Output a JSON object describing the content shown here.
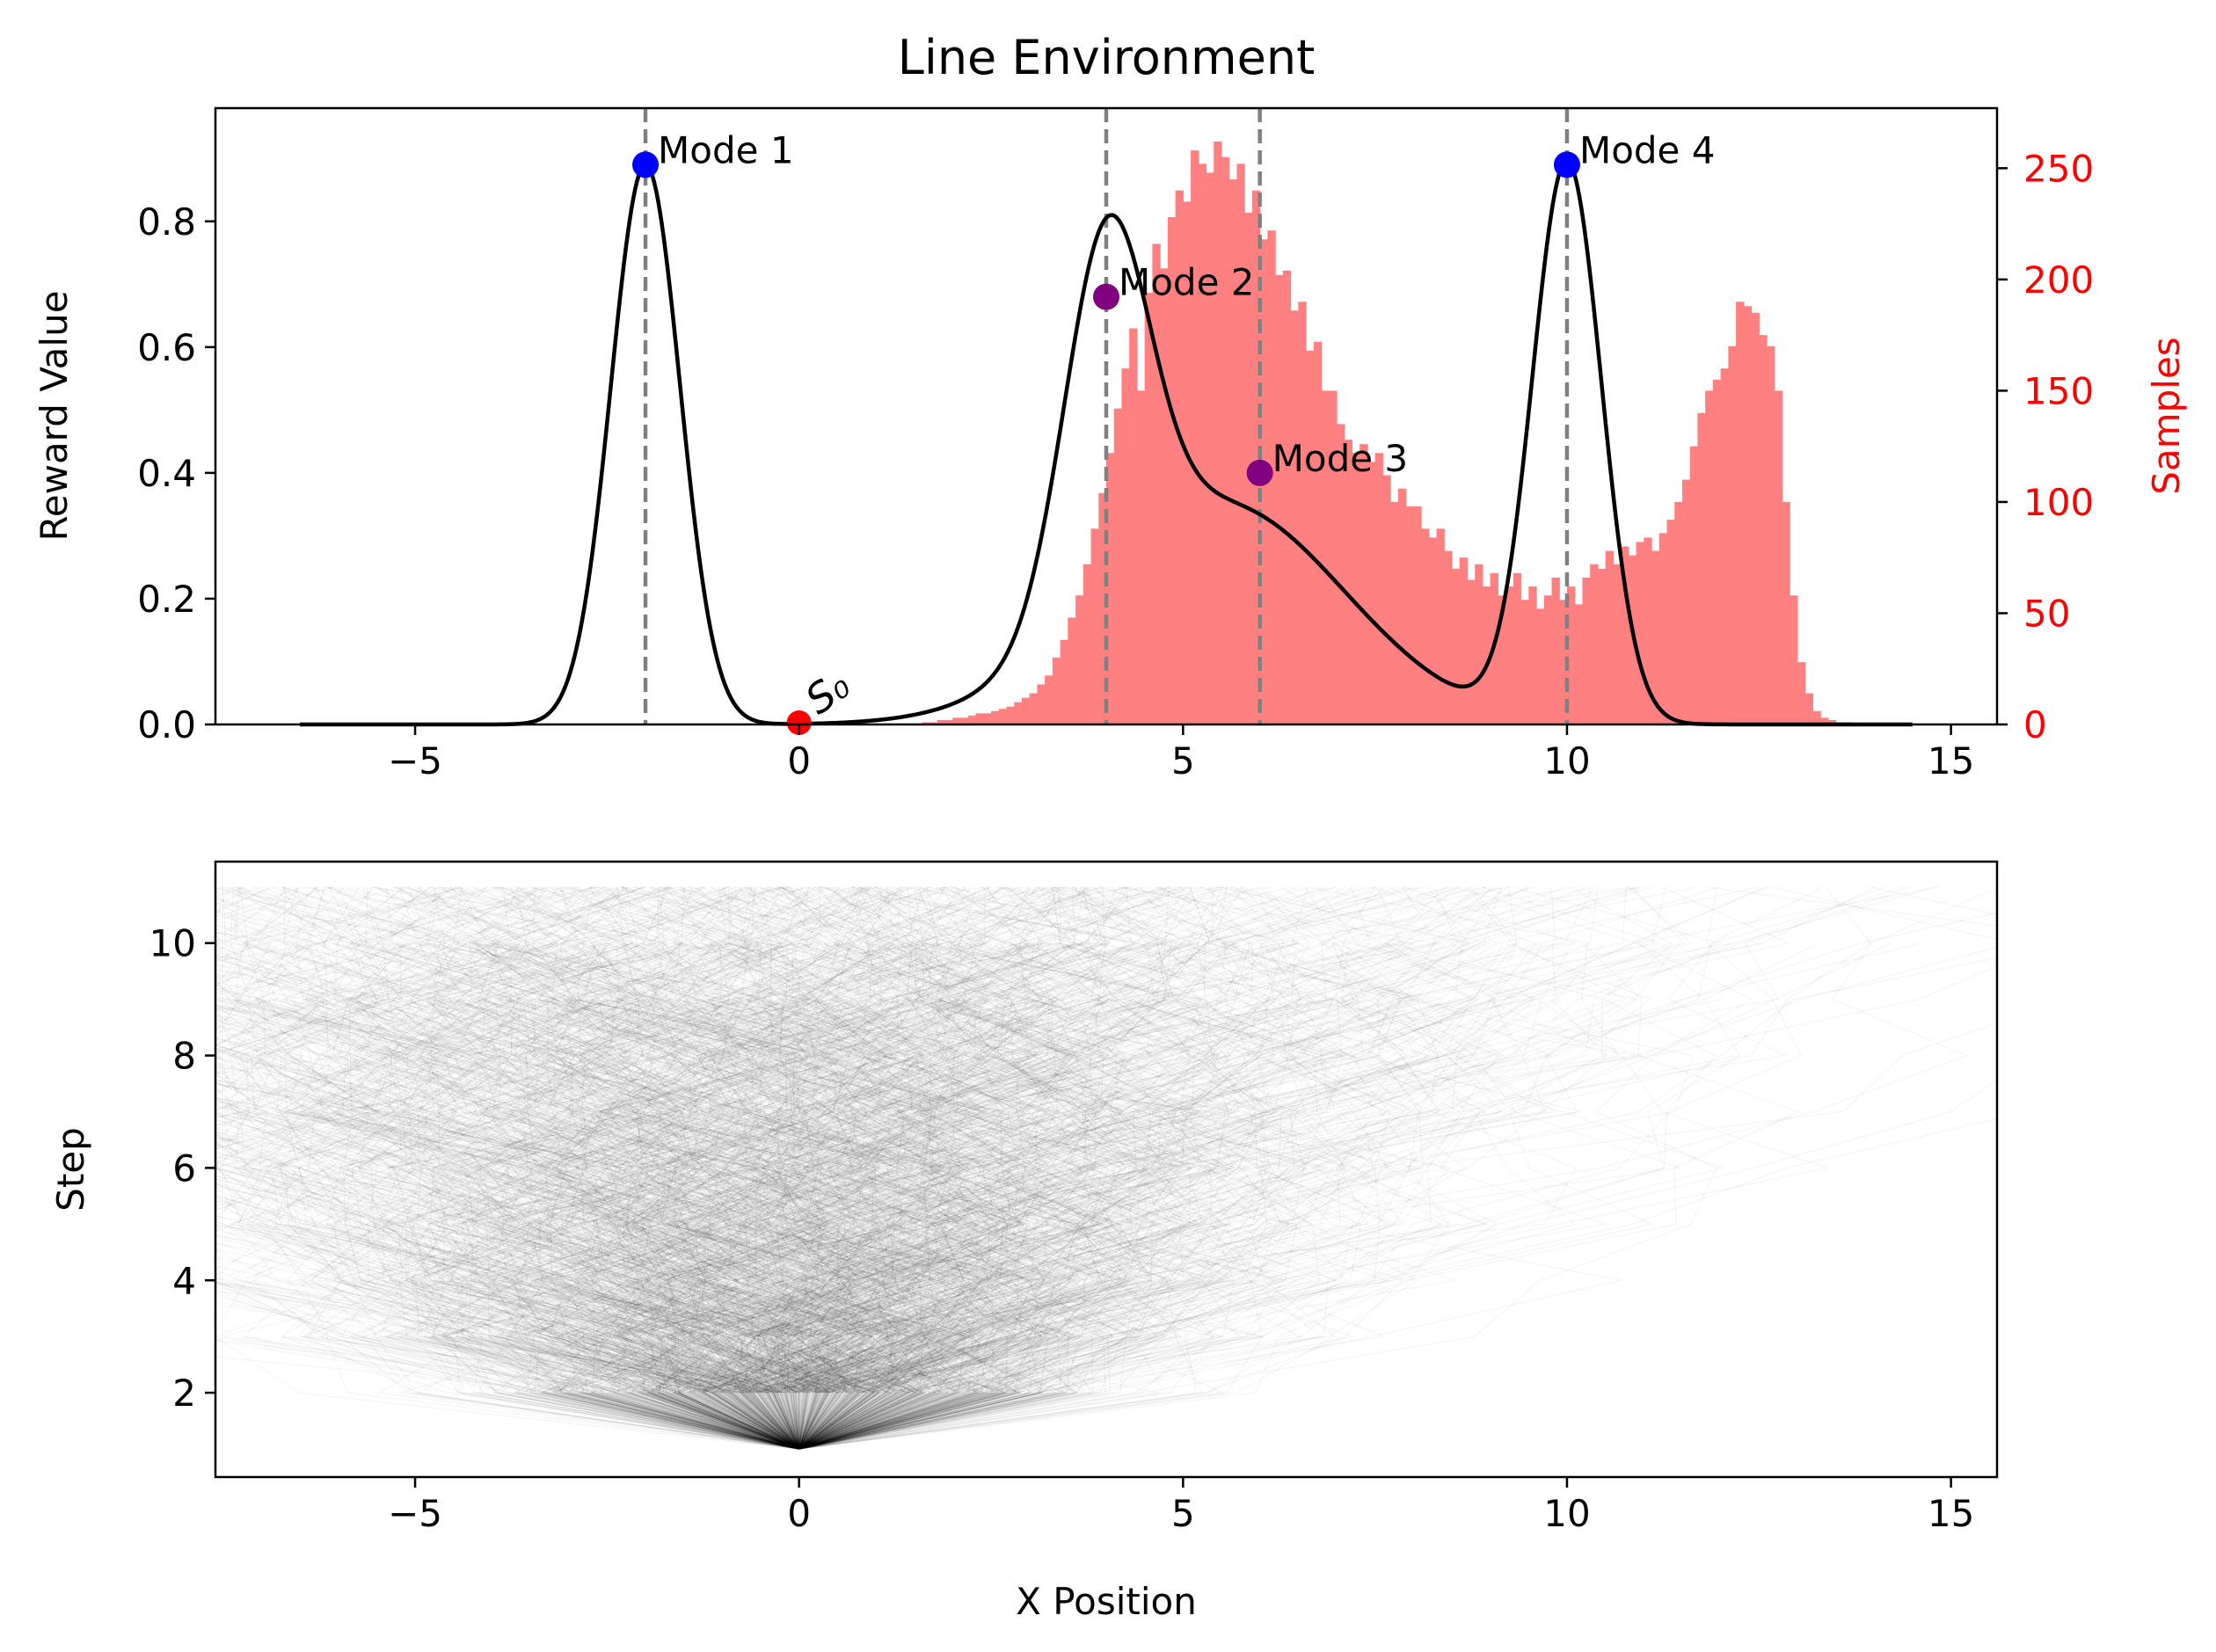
{
  "chart_data": [
    {
      "type": "line",
      "title": "Line Environment",
      "ylabel": "Reward Value",
      "y2label": "Samples",
      "xlim": [
        -7.6,
        15.6
      ],
      "ylim": [
        0,
        0.98
      ],
      "y2lim": [
        0,
        277
      ],
      "xticks": [
        -5,
        0,
        5,
        10,
        15
      ],
      "xtick_labels": [
        "−5",
        "0",
        "5",
        "10",
        "15"
      ],
      "yticks": [
        0.0,
        0.2,
        0.4,
        0.6,
        0.8
      ],
      "ytick_labels": [
        "0.0",
        "0.2",
        "0.4",
        "0.6",
        "0.8"
      ],
      "y2ticks": [
        0,
        50,
        100,
        150,
        200,
        250
      ],
      "y2tick_labels": [
        "0",
        "50",
        "100",
        "150",
        "200",
        "250"
      ],
      "colors": {
        "reward_curve": "#000000",
        "histogram": "#ff8080",
        "mode_line": "#808080",
        "axis_right": "#ff0000",
        "start": "#ff0000"
      },
      "reward_curve": {
        "x_range": [
          -6.5,
          14.5
        ],
        "components": [
          {
            "mean": -2,
            "std": 0.45,
            "amp": 0.89
          },
          {
            "mean": 4,
            "std": 0.55,
            "amp": 0.58
          },
          {
            "mean": 5.5,
            "std": 1.6,
            "amp": 0.35
          },
          {
            "mean": 10,
            "std": 0.45,
            "amp": 0.89
          }
        ]
      },
      "histogram": {
        "x_start": 1.6,
        "bin_width": 0.1,
        "counts": [
          1,
          1,
          2,
          2,
          3,
          3,
          4,
          5,
          5,
          6,
          7,
          8,
          10,
          12,
          14,
          18,
          22,
          30,
          38,
          48,
          58,
          72,
          88,
          104,
          122,
          142,
          160,
          178,
          150,
          194,
          216,
          205,
          228,
          240,
          235,
          258,
          252,
          248,
          262,
          255,
          245,
          252,
          230,
          240,
          218,
          222,
          202,
          204,
          186,
          190,
          168,
          172,
          150,
          150,
          135,
          128,
          122,
          126,
          118,
          122,
          112,
          100,
          106,
          98,
          98,
          88,
          84,
          88,
          78,
          70,
          75,
          65,
          72,
          62,
          68,
          58,
          62,
          68,
          56,
          62,
          52,
          58,
          66,
          56,
          62,
          54,
          66,
          72,
          70,
          78,
          72,
          80,
          76,
          82,
          84,
          78,
          86,
          92,
          100,
          110,
          125,
          140,
          150,
          155,
          160,
          170,
          190,
          188,
          185,
          175,
          170,
          150,
          100,
          58,
          28,
          14,
          6,
          3,
          2,
          1,
          1
        ]
      },
      "modes": [
        {
          "label": "Mode 1",
          "x": -2,
          "y": 0.89,
          "color": "#0000ff"
        },
        {
          "label": "Mode 2",
          "x": 4,
          "y": 0.68,
          "color": "#800080"
        },
        {
          "label": "Mode 3",
          "x": 6,
          "y": 0.4,
          "color": "#800080"
        },
        {
          "label": "Mode 4",
          "x": 10,
          "y": 0.89,
          "color": "#0000ff"
        }
      ],
      "start_state": {
        "label": "S₀",
        "x": 0,
        "y": 0.0
      }
    },
    {
      "type": "line",
      "title": "",
      "xlabel": "X Position",
      "ylabel": "Step",
      "xlim": [
        -7.6,
        15.6
      ],
      "ylim": [
        0.5,
        11.45
      ],
      "xticks": [
        -5,
        0,
        5,
        10,
        15
      ],
      "xtick_labels": [
        "−5",
        "0",
        "5",
        "10",
        "15"
      ],
      "yticks": [
        2,
        4,
        6,
        8,
        10
      ],
      "ytick_labels": [
        "2",
        "4",
        "6",
        "8",
        "10"
      ],
      "trajectories": {
        "count": 1600,
        "start": {
          "x": 0,
          "step": 1
        },
        "max_step": 11,
        "step_std": 1.8,
        "color": "#000000",
        "opacity": 0.045
      }
    }
  ]
}
